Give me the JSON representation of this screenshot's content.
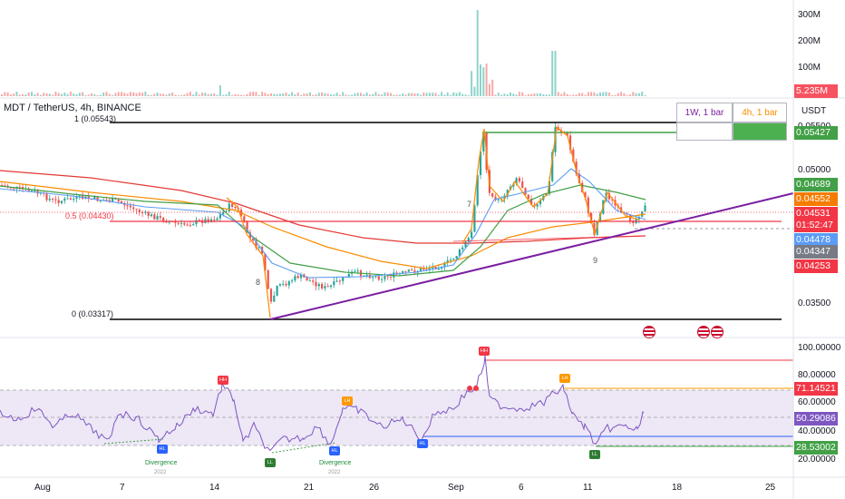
{
  "header": {
    "symbol_title": "MDT / TetherUS, 4h, BINANCE",
    "currency": "USDT"
  },
  "volume_axis": [
    "300M",
    "200M",
    "100M"
  ],
  "volume_tag": "5.235M",
  "fib": {
    "top_label": "1 (0.05543)",
    "mid_label": "0.5 (0.04430)",
    "bottom_label": "0 (0.03317)"
  },
  "timeframes": {
    "weekly": "1W, 1 bar",
    "four_hour": "4h, 1 bar"
  },
  "price_axis": [
    "0.05500",
    "0.05000",
    "0.03500"
  ],
  "price_tags": {
    "t1": "0.05427",
    "t2": "0.04689",
    "t3": "0.04552",
    "t4": "0.04531",
    "countdown": "01:52:47",
    "t5": "0.04478",
    "t6": "0.04347",
    "t7": "0.04253"
  },
  "price_tag_colors": {
    "t1": "#43a047",
    "t2": "#43a047",
    "t3": "#f57c00",
    "t4": "#f23645",
    "t5": "#5b9cf6",
    "t6": "#787b86",
    "t7": "#f23645"
  },
  "wave_labels": [
    "7",
    "8",
    "9"
  ],
  "rsi_axis": [
    "100.00000",
    "80.00000",
    "60.00000",
    "40.00000",
    "20.00000"
  ],
  "rsi_tags": {
    "upper": "71.14521",
    "current": "50.29086",
    "lower": "28.53002"
  },
  "rsi_markers": {
    "hh": "HH",
    "lh": "LH",
    "hl": "HL",
    "ll": "LL"
  },
  "divergence": {
    "label": "Divergence",
    "year": "2022"
  },
  "time_axis": [
    "Aug",
    "7",
    "14",
    "21",
    "26",
    "Sep",
    "6",
    "11",
    "18",
    "25"
  ],
  "colors": {
    "up": "#26a69a",
    "down": "#ef5350",
    "ma_red": "#e53935",
    "ma_orange": "#fb8c00",
    "ma_green": "#43a047",
    "ma_blue": "#5b9cf6",
    "trendline": "#7b1fa2",
    "rsi_line": "#7e57c2",
    "rsi_band": "#ede7f6"
  }
}
